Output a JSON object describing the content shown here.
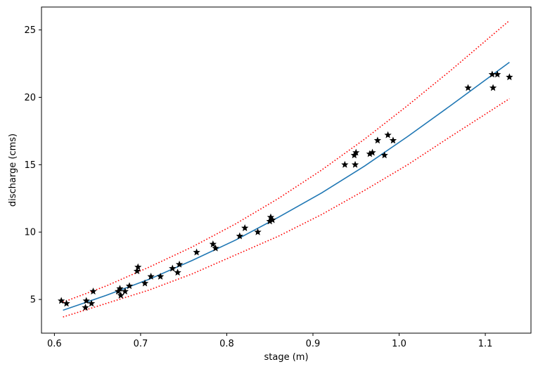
{
  "chart_data": {
    "type": "scatter",
    "xlabel": "stage (m)",
    "ylabel": "discharge (cms)",
    "xlim": [
      0.585,
      1.153
    ],
    "ylim": [
      2.5,
      26.7
    ],
    "xticks": [
      0.6,
      0.7,
      0.8,
      0.9,
      1.0,
      1.1
    ],
    "xtick_labels": [
      "0.6",
      "0.7",
      "0.8",
      "0.9",
      "1.0",
      "1.1"
    ],
    "yticks": [
      5,
      10,
      15,
      20,
      25
    ],
    "ytick_labels": [
      "5",
      "10",
      "15",
      "20",
      "25"
    ],
    "grid": false,
    "colors": {
      "observations": "#000000",
      "fit": "#1f77b4",
      "bounds": "#ff0000"
    },
    "observations": {
      "marker": "star",
      "x": [
        0.608,
        0.614,
        0.636,
        0.637,
        0.643,
        0.645,
        0.674,
        0.676,
        0.677,
        0.682,
        0.687,
        0.696,
        0.697,
        0.705,
        0.712,
        0.723,
        0.737,
        0.743,
        0.745,
        0.765,
        0.784,
        0.787,
        0.815,
        0.821,
        0.836,
        0.85,
        0.851,
        0.853,
        0.937,
        0.948,
        0.949,
        0.95,
        0.966,
        0.969,
        0.975,
        0.983,
        0.987,
        0.993,
        1.08,
        1.108,
        1.109,
        1.114,
        1.128
      ],
      "y": [
        4.9,
        4.7,
        4.4,
        4.9,
        4.7,
        5.6,
        5.6,
        5.8,
        5.3,
        5.6,
        6.0,
        7.1,
        7.4,
        6.2,
        6.7,
        6.7,
        7.3,
        7.0,
        7.6,
        8.5,
        9.1,
        8.8,
        9.7,
        10.3,
        10.0,
        10.8,
        11.1,
        10.9,
        15.0,
        15.7,
        15.0,
        15.9,
        15.8,
        15.9,
        16.8,
        15.7,
        17.2,
        16.8,
        20.7,
        21.7,
        20.7,
        21.7,
        21.5
      ]
    },
    "fit": {
      "style": "solid",
      "x": [
        0.61,
        0.66,
        0.71,
        0.76,
        0.81,
        0.86,
        0.91,
        0.96,
        1.01,
        1.06,
        1.128
      ],
      "y": [
        4.2,
        5.3,
        6.5,
        7.9,
        9.4,
        11.1,
        12.9,
        14.9,
        17.1,
        19.4,
        22.6
      ]
    },
    "upper_bound": {
      "style": "dotted",
      "x": [
        0.61,
        0.66,
        0.71,
        0.76,
        0.81,
        0.86,
        0.91,
        0.96,
        1.01,
        1.06,
        1.128
      ],
      "y": [
        4.8,
        6.0,
        7.4,
        8.9,
        10.6,
        12.5,
        14.6,
        16.9,
        19.4,
        22.0,
        25.7
      ]
    },
    "lower_bound": {
      "style": "dotted",
      "x": [
        0.61,
        0.66,
        0.71,
        0.76,
        0.81,
        0.86,
        0.91,
        0.96,
        1.01,
        1.06,
        1.128
      ],
      "y": [
        3.7,
        4.7,
        5.7,
        6.9,
        8.3,
        9.7,
        11.3,
        13.1,
        15.0,
        17.1,
        19.9
      ]
    }
  }
}
